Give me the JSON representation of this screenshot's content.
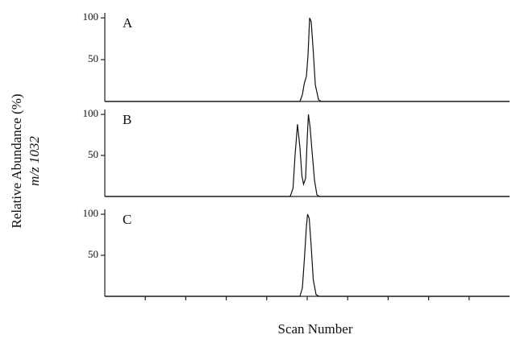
{
  "chart_data": [
    {
      "type": "line",
      "panel_label": "A",
      "xlim": [
        0,
        100
      ],
      "ylim": [
        0,
        106
      ],
      "yticks": [
        50,
        100
      ],
      "x": [
        0,
        47,
        48.2,
        48.8,
        49.3,
        49.8,
        50.2,
        50.6,
        51,
        51.5,
        52,
        52.8,
        53.5,
        100
      ],
      "series": [
        {
          "color": "#111111",
          "values": [
            0,
            0,
            0,
            8,
            22,
            30,
            55,
            100,
            95,
            60,
            20,
            2,
            0,
            0
          ]
        }
      ]
    },
    {
      "type": "line",
      "panel_label": "B",
      "ylabel": [
        "Relative Abundance (%)",
        "m/z 1032"
      ],
      "xlim": [
        0,
        100
      ],
      "ylim": [
        0,
        106
      ],
      "yticks": [
        50,
        100
      ],
      "x": [
        0,
        45,
        45.8,
        46.5,
        47,
        47.6,
        48.2,
        48.7,
        49.1,
        49.6,
        50,
        50.3,
        50.7,
        51.2,
        51.8,
        52.4,
        53,
        100
      ],
      "series": [
        {
          "color": "#111111",
          "values": [
            0,
            0,
            0,
            10,
            50,
            88,
            60,
            25,
            15,
            22,
            70,
            100,
            85,
            55,
            20,
            2,
            0,
            0
          ]
        }
      ]
    },
    {
      "type": "line",
      "panel_label": "C",
      "xlabel": "Scan Number",
      "xlim": [
        0,
        100
      ],
      "ylim": [
        0,
        106
      ],
      "yticks": [
        50,
        100
      ],
      "xticks": [
        10,
        20,
        30,
        40,
        50,
        60,
        70,
        80,
        90
      ],
      "x": [
        0,
        47,
        48.2,
        48.8,
        49.3,
        49.8,
        50.1,
        50.5,
        51,
        51.5,
        52.2,
        53,
        100
      ],
      "series": [
        {
          "color": "#111111",
          "values": [
            0,
            0,
            0,
            10,
            45,
            85,
            100,
            95,
            60,
            20,
            2,
            0,
            0
          ]
        }
      ]
    }
  ]
}
